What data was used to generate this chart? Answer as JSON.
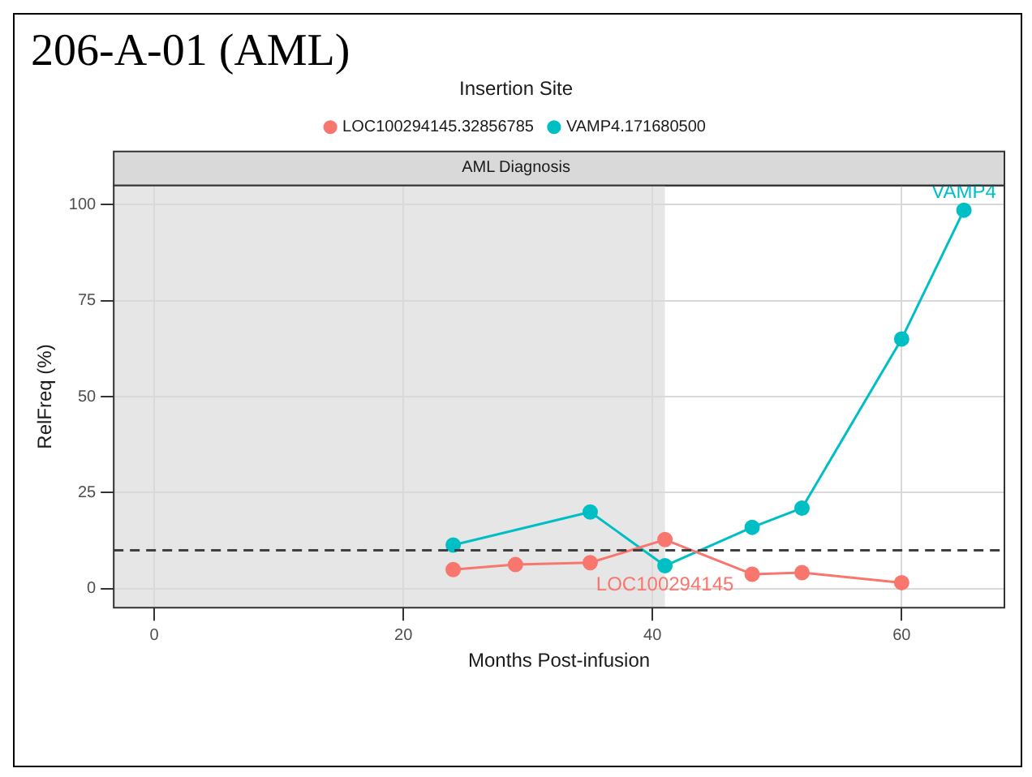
{
  "chart_data": {
    "type": "line",
    "title": "206-A-01 (AML)",
    "subtitle": "AML Diagnosis",
    "xlabel": "Months Post-infusion",
    "ylabel": "RelFreq (%)",
    "legend_title": "Insertion Site",
    "legend": "top",
    "series": [
      {
        "name": "LOC100294145.32856785",
        "color": "#f8766d",
        "x": [
          24,
          29,
          35,
          41,
          48,
          52,
          60
        ],
        "values": [
          5,
          6.3,
          6.8,
          12.8,
          3.8,
          4.2,
          1.6
        ]
      },
      {
        "name": "VAMP4.171680500",
        "color": "#00bfc4",
        "x": [
          24,
          35,
          41,
          48,
          52,
          60,
          65
        ],
        "values": [
          11.4,
          20,
          6,
          16,
          21,
          65,
          98.5
        ]
      }
    ],
    "xlim": [
      -3.25,
      68.25
    ],
    "ylim": [
      -4.9,
      104.9
    ],
    "xticks": [
      0,
      20,
      40,
      60
    ],
    "yticks": [
      0,
      25,
      50,
      75,
      100
    ],
    "grid": true,
    "marker": "circle",
    "line_style": "solid",
    "ref_lines": [
      {
        "axis": "y",
        "value": 10,
        "line_style": "dashed",
        "color": "#404040"
      }
    ],
    "bands": [
      {
        "axis": "x",
        "from": -3.25,
        "to": 41,
        "color": "#e6e6e6"
      }
    ],
    "annotations": [
      {
        "text": "LOC100294145",
        "x": 41,
        "y": 12.8
      },
      {
        "text": "VAMP4",
        "x": 65,
        "y": 98.5
      }
    ]
  }
}
